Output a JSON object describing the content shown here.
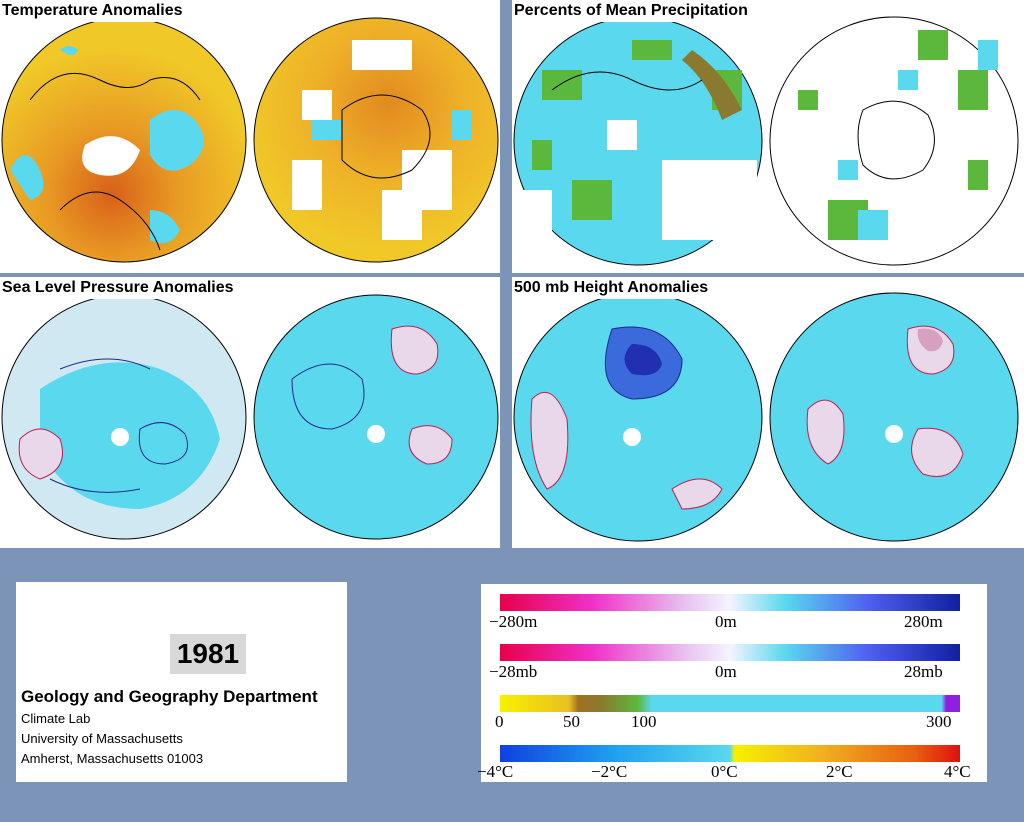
{
  "panels": {
    "temperature": {
      "title": "Temperature Anomalies"
    },
    "precipitation": {
      "title": "Percents of Mean Precipitation"
    },
    "slp": {
      "title": "Sea Level Pressure Anomalies"
    },
    "height500": {
      "title": "500 mb Height Anomalies"
    }
  },
  "info": {
    "year": "1981",
    "department": "Geology and Geography Department",
    "lines": [
      "Climate Lab",
      "University of Massachusetts",
      "Amherst, Massachusetts 01003"
    ]
  },
  "legend": {
    "height": {
      "labels": [
        "−280m",
        "0m",
        "280m"
      ]
    },
    "pressure": {
      "labels": [
        "−28mb",
        "0m",
        "28mb"
      ]
    },
    "precip": {
      "labels": [
        "0",
        "50",
        "100",
        "300"
      ]
    },
    "temp": {
      "labels": [
        "−4°C",
        "−2°C",
        "0°C",
        "2°C",
        "4°C"
      ]
    }
  },
  "colors": {
    "background": "#7b94b8",
    "cyan": "#5ad8ee",
    "yellow": "#f0c828",
    "orange": "#e07818",
    "green": "#5cb83c",
    "contour_blue": "#1c2a88",
    "contour_red": "#c02050"
  }
}
